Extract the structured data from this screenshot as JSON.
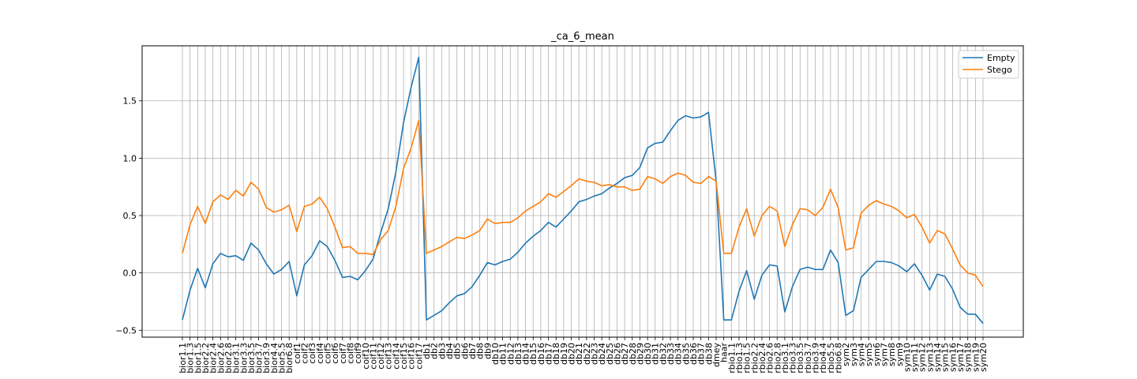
{
  "chart_data": {
    "type": "line",
    "title": "_ca_6_mean",
    "xlabel": "",
    "ylabel": "",
    "ylim": [
      -0.56,
      1.98
    ],
    "yticks": [
      -0.5,
      0.0,
      0.5,
      1.0,
      1.5
    ],
    "ytick_labels": [
      "−0.5",
      "0.0",
      "0.5",
      "1.0",
      "1.5"
    ],
    "grid": true,
    "legend": "top-right",
    "categories": [
      "bior1.1",
      "bior1.3",
      "bior1.5",
      "bior2.2",
      "bior2.4",
      "bior2.6",
      "bior2.8",
      "bior3.1",
      "bior3.3",
      "bior3.5",
      "bior3.7",
      "bior3.9",
      "bior4.4",
      "bior5.5",
      "bior6.8",
      "coif1",
      "coif2",
      "coif3",
      "coif4",
      "coif5",
      "coif6",
      "coif7",
      "coif8",
      "coif9",
      "coif10",
      "coif11",
      "coif12",
      "coif13",
      "coif14",
      "coif15",
      "coif16",
      "coif17",
      "db1",
      "db2",
      "db3",
      "db4",
      "db5",
      "db6",
      "db7",
      "db8",
      "db9",
      "db10",
      "db11",
      "db12",
      "db13",
      "db14",
      "db15",
      "db16",
      "db17",
      "db18",
      "db19",
      "db20",
      "db21",
      "db22",
      "db23",
      "db24",
      "db25",
      "db26",
      "db27",
      "db28",
      "db29",
      "db30",
      "db31",
      "db32",
      "db33",
      "db34",
      "db35",
      "db36",
      "db37",
      "db38",
      "dmey",
      "haar",
      "rbio1.1",
      "rbio1.3",
      "rbio1.5",
      "rbio2.2",
      "rbio2.4",
      "rbio2.6",
      "rbio2.8",
      "rbio3.1",
      "rbio3.3",
      "rbio3.5",
      "rbio3.7",
      "rbio3.9",
      "rbio4.4",
      "rbio5.5",
      "rbio6.8",
      "sym2",
      "sym3",
      "sym4",
      "sym5",
      "sym6",
      "sym7",
      "sym8",
      "sym9",
      "sym10",
      "sym11",
      "sym12",
      "sym13",
      "sym14",
      "sym15",
      "sym16",
      "sym17",
      "sym18",
      "sym19",
      "sym20"
    ],
    "series": [
      {
        "name": "Empty",
        "color": "#1f77b4",
        "values": [
          -0.41,
          -0.15,
          0.04,
          -0.13,
          0.08,
          0.17,
          0.14,
          0.15,
          0.11,
          0.26,
          0.2,
          0.08,
          -0.01,
          0.03,
          0.1,
          -0.2,
          0.07,
          0.15,
          0.28,
          0.23,
          0.11,
          -0.04,
          -0.03,
          -0.06,
          0.02,
          0.12,
          0.35,
          0.56,
          0.88,
          1.31,
          1.62,
          1.88,
          -0.41,
          -0.37,
          -0.33,
          -0.26,
          -0.2,
          -0.18,
          -0.12,
          -0.02,
          0.09,
          0.07,
          0.1,
          0.12,
          0.18,
          0.26,
          0.32,
          0.37,
          0.44,
          0.4,
          0.47,
          0.54,
          0.62,
          0.64,
          0.67,
          0.69,
          0.74,
          0.78,
          0.83,
          0.85,
          0.92,
          1.09,
          1.13,
          1.14,
          1.24,
          1.33,
          1.37,
          1.35,
          1.36,
          1.4,
          0.8,
          -0.41,
          -0.41,
          -0.16,
          0.02,
          -0.23,
          -0.02,
          0.07,
          0.06,
          -0.34,
          -0.12,
          0.03,
          0.05,
          0.03,
          0.03,
          0.2,
          0.09,
          -0.37,
          -0.33,
          -0.04,
          0.03,
          0.1,
          0.1,
          0.09,
          0.06,
          0.01,
          0.08,
          -0.02,
          -0.15,
          -0.01,
          -0.03,
          -0.14,
          -0.3,
          -0.36,
          -0.36,
          -0.44
        ]
      },
      {
        "name": "Stego",
        "color": "#ff7f0e",
        "values": [
          0.17,
          0.42,
          0.58,
          0.43,
          0.62,
          0.68,
          0.64,
          0.72,
          0.67,
          0.79,
          0.73,
          0.57,
          0.53,
          0.55,
          0.59,
          0.36,
          0.58,
          0.6,
          0.66,
          0.56,
          0.4,
          0.22,
          0.23,
          0.17,
          0.17,
          0.16,
          0.29,
          0.37,
          0.58,
          0.91,
          1.09,
          1.33,
          0.17,
          0.2,
          0.23,
          0.27,
          0.31,
          0.3,
          0.33,
          0.37,
          0.47,
          0.43,
          0.44,
          0.44,
          0.48,
          0.54,
          0.58,
          0.62,
          0.69,
          0.66,
          0.71,
          0.76,
          0.82,
          0.8,
          0.79,
          0.76,
          0.77,
          0.75,
          0.75,
          0.72,
          0.73,
          0.84,
          0.82,
          0.78,
          0.84,
          0.87,
          0.85,
          0.79,
          0.78,
          0.84,
          0.8,
          0.17,
          0.17,
          0.4,
          0.56,
          0.32,
          0.5,
          0.58,
          0.54,
          0.23,
          0.42,
          0.56,
          0.55,
          0.5,
          0.57,
          0.73,
          0.57,
          0.2,
          0.22,
          0.52,
          0.59,
          0.63,
          0.6,
          0.58,
          0.54,
          0.48,
          0.51,
          0.4,
          0.26,
          0.37,
          0.34,
          0.21,
          0.07,
          0.0,
          -0.02,
          -0.12
        ]
      }
    ]
  }
}
